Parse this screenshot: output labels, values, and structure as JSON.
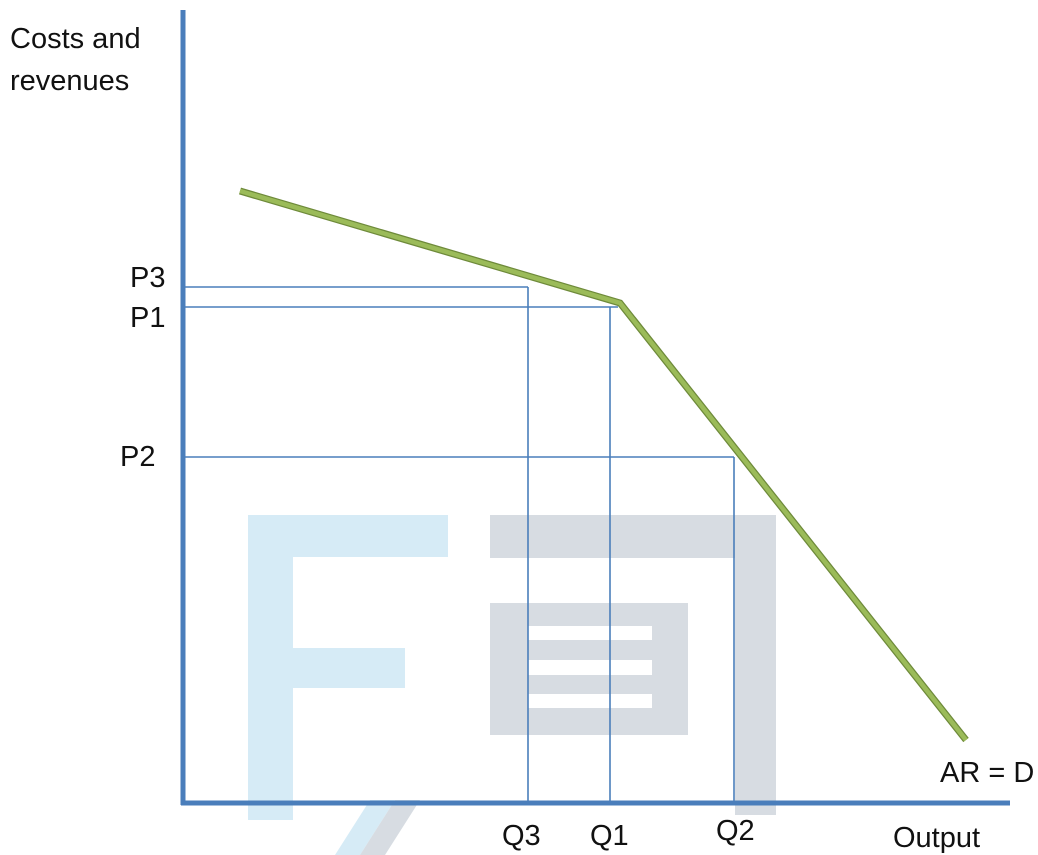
{
  "labels": {
    "y_axis_line1": "Costs and",
    "y_axis_line2": "revenues",
    "x_axis": "Output",
    "curve": "AR = D"
  },
  "prices": [
    "P3",
    "P1",
    "P2"
  ],
  "quantities": [
    "Q3",
    "Q1",
    "Q2"
  ],
  "colors": {
    "axis": "#4a7ebb",
    "guide": "#4a7ebb",
    "curve": "#9bbb59",
    "watermark_light_blue": "#d6ebf6",
    "watermark_gray": "#d7dce2"
  },
  "icons": [
    "watermark-logo"
  ]
}
